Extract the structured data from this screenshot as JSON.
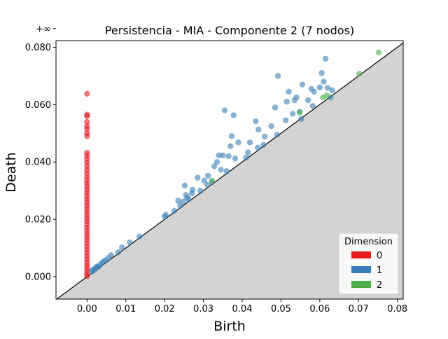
{
  "chart_data": {
    "type": "scatter",
    "title": "Persistencia - MIA - Componente 2 (7 nodos)",
    "xlabel": "Birth",
    "ylabel": "Death",
    "xlim": [
      -0.008,
      0.0815
    ],
    "ylim": [
      -0.0078,
      0.0823
    ],
    "x_ticks": [
      0.0,
      0.01,
      0.02,
      0.03,
      0.04,
      0.05,
      0.06,
      0.07,
      0.08
    ],
    "x_tick_labels": [
      "0.00",
      "0.01",
      "0.02",
      "0.03",
      "0.04",
      "0.05",
      "0.06",
      "0.07",
      "0.08"
    ],
    "y_ticks": [
      0.0,
      0.02,
      0.04,
      0.06,
      0.08
    ],
    "y_tick_labels": [
      "0.000",
      "0.020",
      "0.040",
      "0.060",
      "0.080"
    ],
    "infinity_label": "+∞",
    "infinity_value": 0.0865,
    "diagonal": true,
    "legend": {
      "title": "Dimension",
      "placement": "lower-right",
      "entries": [
        {
          "label": "0",
          "color": "#e41a1c"
        },
        {
          "label": "1",
          "color": "#377eb8"
        },
        {
          "label": "2",
          "color": "#4daf4a"
        }
      ]
    },
    "series": [
      {
        "name": "0",
        "color": "#e41a1c",
        "points": [
          [
            0,
            0.0865
          ],
          [
            0,
            0.0638
          ],
          [
            0,
            0.0565
          ],
          [
            0,
            0.056
          ],
          [
            0,
            0.054
          ],
          [
            0,
            0.0525
          ],
          [
            0,
            0.0515
          ],
          [
            0,
            0.05
          ],
          [
            0,
            0.049
          ],
          [
            0,
            0.0432
          ],
          [
            0,
            0.0422
          ],
          [
            0,
            0.041
          ],
          [
            0,
            0.0398
          ],
          [
            0,
            0.0385
          ],
          [
            0,
            0.0372
          ],
          [
            0,
            0.036
          ],
          [
            0,
            0.0348
          ],
          [
            0,
            0.0336
          ],
          [
            0,
            0.0325
          ],
          [
            0,
            0.0314
          ],
          [
            0,
            0.0303
          ],
          [
            0,
            0.0292
          ],
          [
            0,
            0.0281
          ],
          [
            0,
            0.027
          ],
          [
            0,
            0.0259
          ],
          [
            0,
            0.0248
          ],
          [
            0,
            0.0237
          ],
          [
            0,
            0.0226
          ],
          [
            0,
            0.0215
          ],
          [
            0,
            0.0204
          ],
          [
            0,
            0.0193
          ],
          [
            0,
            0.0182
          ],
          [
            0,
            0.0171
          ],
          [
            0,
            0.016
          ],
          [
            0,
            0.0149
          ],
          [
            0,
            0.0138
          ],
          [
            0,
            0.0127
          ],
          [
            0,
            0.0116
          ],
          [
            0,
            0.0105
          ],
          [
            0,
            0.0094
          ],
          [
            0,
            0.0083
          ],
          [
            0,
            0.0072
          ],
          [
            0,
            0.0061
          ],
          [
            0,
            0.005
          ],
          [
            0,
            0.004
          ],
          [
            0,
            0.003
          ],
          [
            0,
            0.002
          ],
          [
            0,
            0.001
          ],
          [
            0,
            0.0002
          ]
        ]
      },
      {
        "name": "1",
        "color": "#377eb8",
        "points": [
          [
            0.0012,
            0.0018
          ],
          [
            0.0015,
            0.0025
          ],
          [
            0.0018,
            0.0022
          ],
          [
            0.0022,
            0.003
          ],
          [
            0.0025,
            0.0035
          ],
          [
            0.0028,
            0.0033
          ],
          [
            0.0032,
            0.004
          ],
          [
            0.0038,
            0.0048
          ],
          [
            0.0042,
            0.0052
          ],
          [
            0.0048,
            0.0058
          ],
          [
            0.0055,
            0.0065
          ],
          [
            0.0062,
            0.0075
          ],
          [
            0.008,
            0.0085
          ],
          [
            0.009,
            0.0102
          ],
          [
            0.011,
            0.012
          ],
          [
            0.0135,
            0.014
          ],
          [
            0.02,
            0.021
          ],
          [
            0.0203,
            0.0216
          ],
          [
            0.0225,
            0.023
          ],
          [
            0.0235,
            0.0265
          ],
          [
            0.024,
            0.0248
          ],
          [
            0.0248,
            0.0262
          ],
          [
            0.0252,
            0.0318
          ],
          [
            0.0255,
            0.0285
          ],
          [
            0.0258,
            0.0275
          ],
          [
            0.0262,
            0.027
          ],
          [
            0.027,
            0.029
          ],
          [
            0.0272,
            0.0303
          ],
          [
            0.0285,
            0.0345
          ],
          [
            0.0292,
            0.03
          ],
          [
            0.0302,
            0.0335
          ],
          [
            0.031,
            0.032
          ],
          [
            0.0312,
            0.0352
          ],
          [
            0.0322,
            0.033
          ],
          [
            0.0328,
            0.0385
          ],
          [
            0.0335,
            0.04
          ],
          [
            0.034,
            0.0423
          ],
          [
            0.0345,
            0.0373
          ],
          [
            0.035,
            0.0423
          ],
          [
            0.0355,
            0.058
          ],
          [
            0.036,
            0.0368
          ],
          [
            0.0365,
            0.042
          ],
          [
            0.037,
            0.0455
          ],
          [
            0.0373,
            0.049
          ],
          [
            0.0378,
            0.0563
          ],
          [
            0.0382,
            0.0412
          ],
          [
            0.039,
            0.0468
          ],
          [
            0.041,
            0.0415
          ],
          [
            0.0415,
            0.0433
          ],
          [
            0.042,
            0.0468
          ],
          [
            0.0435,
            0.0542
          ],
          [
            0.044,
            0.045
          ],
          [
            0.0442,
            0.0513
          ],
          [
            0.0455,
            0.046
          ],
          [
            0.0458,
            0.0488
          ],
          [
            0.0475,
            0.0525
          ],
          [
            0.0485,
            0.059
          ],
          [
            0.049,
            0.0495
          ],
          [
            0.0492,
            0.07
          ],
          [
            0.0512,
            0.0545
          ],
          [
            0.0515,
            0.061
          ],
          [
            0.052,
            0.0645
          ],
          [
            0.053,
            0.0568
          ],
          [
            0.0535,
            0.0615
          ],
          [
            0.054,
            0.0625
          ],
          [
            0.0548,
            0.0575
          ],
          [
            0.0552,
            0.055
          ],
          [
            0.0555,
            0.067
          ],
          [
            0.057,
            0.0615
          ],
          [
            0.0578,
            0.0655
          ],
          [
            0.0582,
            0.0595
          ],
          [
            0.0585,
            0.0645
          ],
          [
            0.06,
            0.066
          ],
          [
            0.0605,
            0.071
          ],
          [
            0.061,
            0.068
          ],
          [
            0.0615,
            0.076
          ],
          [
            0.062,
            0.0658
          ],
          [
            0.0628,
            0.0625
          ],
          [
            0.0632,
            0.065
          ]
        ]
      },
      {
        "name": "2",
        "color": "#4daf4a",
        "points": [
          [
            0.0322,
            0.0335
          ],
          [
            0.0548,
            0.0572
          ],
          [
            0.0608,
            0.0625
          ],
          [
            0.0618,
            0.0632
          ],
          [
            0.0702,
            0.0708
          ],
          [
            0.0752,
            0.0782
          ]
        ]
      }
    ]
  }
}
